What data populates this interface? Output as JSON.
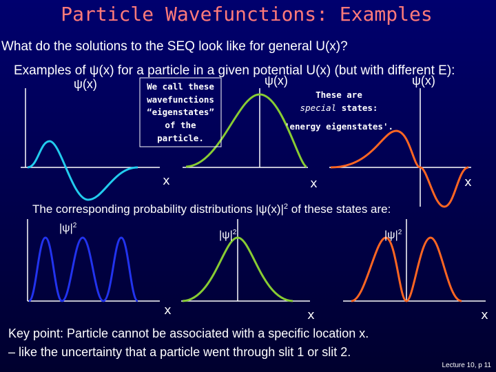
{
  "title": "Particle Wavefunctions:  Examples",
  "question": "What do the solutions to the SEQ look like for general U(x)?",
  "examples_line": "Examples of ψ(x) for a particle in a given potential U(x) (but with different E):",
  "psi_label": "ψ(x)",
  "box_note": [
    "We call these",
    "wavefunctions",
    "“eigenstates”",
    "of the",
    "particle."
  ],
  "special_note": {
    "line1": "These are",
    "special": "special",
    "line2_rest": " states:",
    "line3": "'energy eigenstates'."
  },
  "x_label": "x",
  "probability_line": {
    "before": "The corresponding probability distributions |ψ(x)|",
    "sup": "2",
    "after": " of these states are:"
  },
  "prob_label": {
    "base": "|ψ|",
    "sup": "2"
  },
  "key_point": [
    "Key point: Particle cannot be associated with a specific location x.",
    "– like the uncertainty that a particle went through slit 1 or slit 2."
  ],
  "footer": "Lecture 10, p 11"
}
